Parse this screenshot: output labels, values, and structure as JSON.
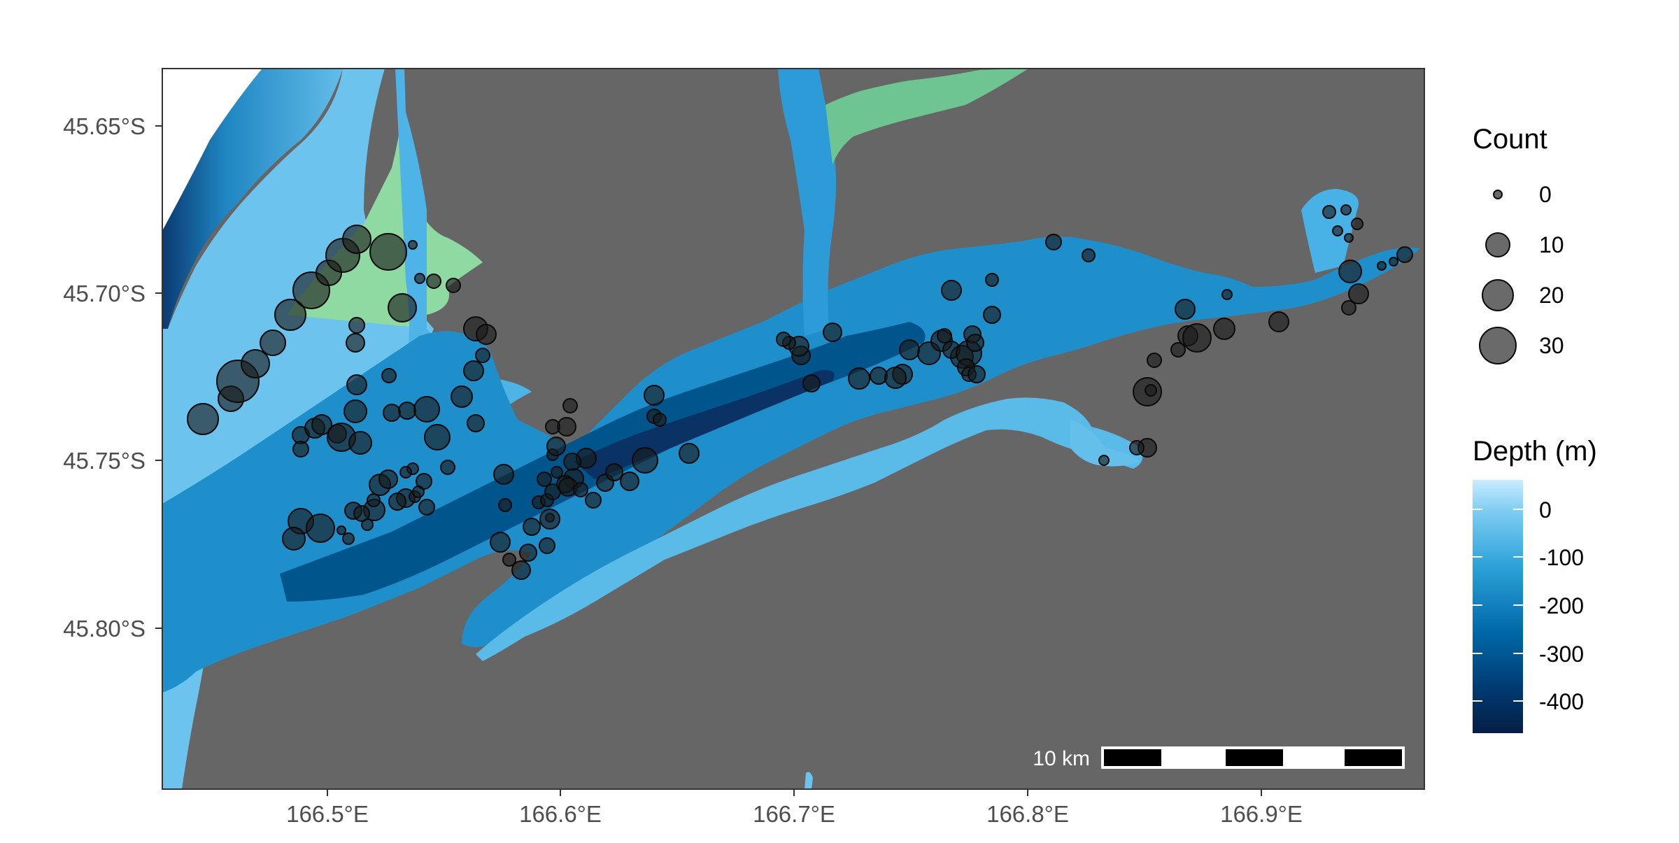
{
  "map": {
    "x_labels": [
      "166.5°E",
      "166.6°E",
      "166.7°E",
      "166.8°E",
      "166.9°E"
    ],
    "y_labels": [
      "45.65°S",
      "45.70°S",
      "45.75°S",
      "45.80°S"
    ],
    "scalebar_label": "10 km",
    "colors": {
      "land": "#666666",
      "shallow": "#9dd7f5",
      "mid": "#31a6de",
      "deep": "#00598f",
      "deepest": "#08244f",
      "green_area": "#88d6a0",
      "point": "#1a1a1a"
    }
  },
  "legend": {
    "count_title": "Count",
    "count_labels": [
      "0",
      "10",
      "20",
      "30"
    ],
    "depth_title": "Depth (m)",
    "depth_labels": [
      "0",
      "-100",
      "-200",
      "-300",
      "-400"
    ]
  }
}
